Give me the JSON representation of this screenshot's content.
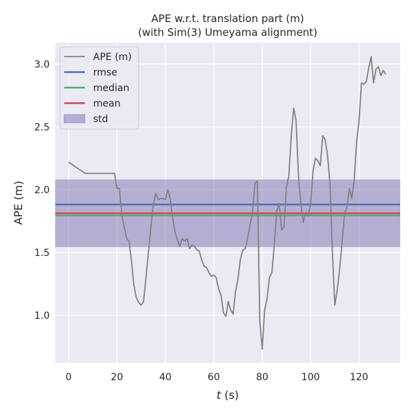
{
  "chart_data": {
    "type": "line",
    "title_line1": "APE w.r.t. translation part (m)",
    "title_line2": "(with Sim(3) Umeyama alignment)",
    "xlabel_italic": "t",
    "xlabel_unit": " (s)",
    "ylabel": "APE (m)",
    "xlim": [
      -5.5,
      137
    ],
    "ylim": [
      0.62,
      3.17
    ],
    "xticks": [
      0,
      20,
      40,
      60,
      80,
      100,
      120
    ],
    "yticks": [
      1.0,
      1.5,
      2.0,
      2.5,
      3.0
    ],
    "xtick_labels": [
      "0",
      "20",
      "40",
      "60",
      "80",
      "100",
      "120"
    ],
    "ytick_labels": [
      "1.0",
      "1.5",
      "2.0",
      "2.5",
      "3.0"
    ],
    "grid": true,
    "legend_position": "top-left",
    "series": [
      {
        "name": "APE (m)",
        "color": "#808080",
        "x": [
          0,
          3,
          7,
          10,
          15,
          19,
          20,
          21,
          22,
          24,
          25,
          26,
          27,
          28,
          29,
          30,
          31,
          32,
          33,
          34,
          35,
          36,
          37,
          38,
          39,
          40,
          41,
          42,
          43,
          44,
          45,
          46,
          47,
          48,
          49,
          50,
          51,
          52,
          53,
          54,
          55,
          56,
          57,
          58,
          59,
          60,
          61,
          62,
          63,
          64,
          65,
          66,
          67,
          68,
          69,
          70,
          71,
          72,
          73,
          74,
          75,
          76,
          77,
          78,
          79,
          80,
          81,
          82,
          83,
          84,
          85,
          86,
          87,
          88,
          89,
          90,
          91,
          92,
          93,
          94,
          95,
          96,
          97,
          98,
          99,
          100,
          101,
          102,
          103,
          104,
          105,
          106,
          107,
          108,
          109,
          110,
          111,
          112,
          113,
          114,
          115,
          116,
          117,
          118,
          119,
          120,
          121,
          122,
          123,
          124,
          125,
          126,
          127,
          128,
          129,
          130,
          131
        ],
        "values": [
          2.22,
          2.18,
          2.13,
          2.13,
          2.13,
          2.13,
          2.01,
          2.01,
          1.8,
          1.61,
          1.59,
          1.43,
          1.24,
          1.14,
          1.1,
          1.08,
          1.11,
          1.3,
          1.5,
          1.7,
          1.88,
          1.97,
          1.92,
          1.93,
          1.93,
          1.92,
          2.0,
          1.93,
          1.78,
          1.66,
          1.6,
          1.55,
          1.61,
          1.59,
          1.61,
          1.53,
          1.56,
          1.55,
          1.52,
          1.51,
          1.44,
          1.39,
          1.38,
          1.34,
          1.31,
          1.32,
          1.3,
          1.21,
          1.16,
          1.02,
          0.99,
          1.11,
          1.04,
          1.01,
          1.19,
          1.29,
          1.45,
          1.52,
          1.53,
          1.62,
          1.72,
          1.82,
          2.05,
          2.07,
          0.96,
          0.73,
          1.04,
          1.13,
          1.3,
          1.34,
          1.56,
          1.83,
          1.89,
          1.68,
          1.7,
          2.02,
          2.11,
          2.43,
          2.65,
          2.55,
          2.1,
          1.88,
          1.74,
          1.82,
          1.79,
          1.88,
          2.15,
          2.25,
          2.23,
          2.19,
          2.43,
          2.4,
          2.27,
          2.05,
          1.5,
          1.08,
          1.2,
          1.37,
          1.58,
          1.81,
          1.86,
          2.01,
          1.93,
          2.08,
          2.38,
          2.55,
          2.85,
          2.84,
          2.86,
          2.97,
          3.06,
          2.85,
          2.96,
          2.98,
          2.91,
          2.95,
          2.92
        ]
      },
      {
        "name": "rmse",
        "color": "#4c72b0",
        "value": 1.882
      },
      {
        "name": "median",
        "color": "#55a868",
        "value": 1.795
      },
      {
        "name": "mean",
        "color": "#c44e52",
        "value": 1.812
      },
      {
        "name": "std",
        "color": "#8172b2",
        "range": [
          1.543,
          2.081
        ]
      }
    ]
  }
}
